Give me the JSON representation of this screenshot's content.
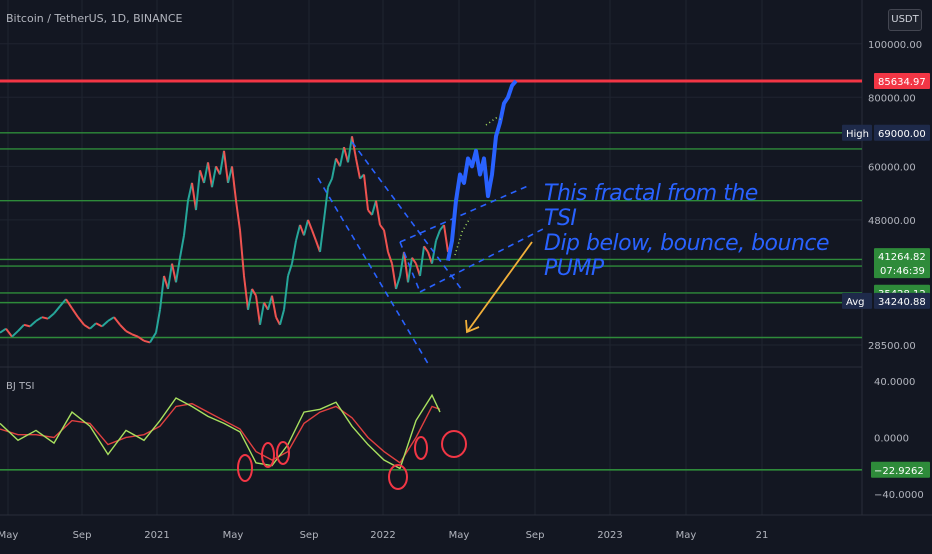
{
  "header": {
    "symbol_title": "Bitcoin / TetherUS, 1D, BINANCE",
    "unit_badge": "USDT"
  },
  "indicator": {
    "title": "BJ TSI"
  },
  "annotation": {
    "lines": [
      "This fractal from the",
      "TSI",
      "Dip below, bounce, bounce",
      "PUMP"
    ]
  },
  "colors": {
    "background": "#131722",
    "grid": "#1f2430",
    "horizontal_level": "#2e8b3a",
    "resistance": "#f23645",
    "projection": "#2962ff",
    "arrow": "#f2b03a",
    "circle": "#f23645",
    "tsi_green": "#a8e05f",
    "tsi_red": "#e04040"
  },
  "chart_data": [
    {
      "type": "line",
      "title": "Bitcoin / TetherUS, 1D, BINANCE",
      "y_scale": "log",
      "ylim": [
        26000,
        120000
      ],
      "x_ticks": [
        "May",
        "Sep",
        "2021",
        "May",
        "Sep",
        "2022",
        "May",
        "Sep",
        "2023",
        "May",
        "21"
      ],
      "y_ticks": [
        "100000.00",
        "80000.00",
        "60000.00",
        "48000.00",
        "28500.00"
      ],
      "y_tick_values": [
        100000,
        80000,
        60000,
        48000,
        28500
      ],
      "price_labels": [
        {
          "text": "85634.97",
          "value": 85634.97,
          "color": "#f23645",
          "tag": ""
        },
        {
          "text": "69000.00",
          "value": 69000,
          "color": "#1e2a4a",
          "tag": "High"
        },
        {
          "text": "41264.82",
          "value": 41264.82,
          "color": "#2e8b3a",
          "tag": "",
          "countdown": "07:46:39"
        },
        {
          "text": "35428.12",
          "value": 35428.12,
          "color": "#2e8b3a",
          "tag": ""
        },
        {
          "text": "34240.88",
          "value": 34240.88,
          "color": "#1e2a4a",
          "tag": "Avg"
        }
      ],
      "horizontal_levels": [
        69000,
        64500,
        52000,
        40700,
        39600,
        35400,
        34000,
        29400
      ],
      "resistance_level": 85634.97,
      "series": [
        {
          "values": [
            [
              0,
              30000
            ],
            [
              6,
              30500
            ],
            [
              12,
              29500
            ],
            [
              18,
              30200
            ],
            [
              24,
              31000
            ],
            [
              30,
              30800
            ],
            [
              36,
              31500
            ],
            [
              42,
              32000
            ],
            [
              48,
              31800
            ],
            [
              54,
              32500
            ],
            [
              60,
              33500
            ],
            [
              66,
              34500
            ],
            [
              72,
              33200
            ],
            [
              78,
              32000
            ],
            [
              84,
              31000
            ],
            [
              90,
              30500
            ],
            [
              96,
              31200
            ],
            [
              102,
              30800
            ],
            [
              108,
              31500
            ],
            [
              114,
              32000
            ],
            [
              120,
              31000
            ],
            [
              126,
              30200
            ],
            [
              132,
              29800
            ],
            [
              138,
              29500
            ],
            [
              144,
              29000
            ],
            [
              150,
              28800
            ],
            [
              156,
              30000
            ],
            [
              160,
              33000
            ],
            [
              164,
              38000
            ],
            [
              168,
              36000
            ],
            [
              172,
              40000
            ],
            [
              176,
              37000
            ],
            [
              180,
              41000
            ],
            [
              184,
              45000
            ],
            [
              188,
              52000
            ],
            [
              192,
              56000
            ],
            [
              196,
              50000
            ],
            [
              200,
              59000
            ],
            [
              204,
              56000
            ],
            [
              208,
              61000
            ],
            [
              212,
              55000
            ],
            [
              216,
              60000
            ],
            [
              220,
              58000
            ],
            [
              224,
              64000
            ],
            [
              228,
              56000
            ],
            [
              232,
              60000
            ],
            [
              236,
              52000
            ],
            [
              240,
              46000
            ],
            [
              244,
              38000
            ],
            [
              248,
              33000
            ],
            [
              252,
              36000
            ],
            [
              256,
              35000
            ],
            [
              260,
              31000
            ],
            [
              264,
              34000
            ],
            [
              268,
              33000
            ],
            [
              272,
              35000
            ],
            [
              276,
              32000
            ],
            [
              280,
              31000
            ],
            [
              284,
              33000
            ],
            [
              288,
              38000
            ],
            [
              292,
              40000
            ],
            [
              296,
              44000
            ],
            [
              300,
              47000
            ],
            [
              304,
              45000
            ],
            [
              308,
              48000
            ],
            [
              312,
              46000
            ],
            [
              316,
              44000
            ],
            [
              320,
              42000
            ],
            [
              324,
              48000
            ],
            [
              328,
              55000
            ],
            [
              332,
              57000
            ],
            [
              336,
              62000
            ],
            [
              340,
              60000
            ],
            [
              344,
              65000
            ],
            [
              348,
              61000
            ],
            [
              352,
              68000
            ],
            [
              356,
              62000
            ],
            [
              360,
              57000
            ],
            [
              364,
              58000
            ],
            [
              368,
              50000
            ],
            [
              372,
              49000
            ],
            [
              376,
              52000
            ],
            [
              380,
              47000
            ],
            [
              384,
              46000
            ],
            [
              388,
              42000
            ],
            [
              392,
              40000
            ],
            [
              396,
              36000
            ],
            [
              400,
              38000
            ],
            [
              404,
              42000
            ],
            [
              408,
              37000
            ],
            [
              412,
              41000
            ],
            [
              416,
              40000
            ],
            [
              420,
              38000
            ],
            [
              424,
              43000
            ],
            [
              428,
              42000
            ],
            [
              432,
              40000
            ],
            [
              436,
              44000
            ],
            [
              440,
              46000
            ],
            [
              444,
              47000
            ],
            [
              448,
              42000
            ]
          ]
        },
        {
          "name": "projection",
          "values": [
            [
              448,
              40500
            ],
            [
              452,
              44000
            ],
            [
              456,
              52000
            ],
            [
              460,
              58000
            ],
            [
              464,
              56000
            ],
            [
              468,
              62000
            ],
            [
              472,
              60000
            ],
            [
              476,
              64000
            ],
            [
              480,
              58000
            ],
            [
              484,
              62000
            ],
            [
              488,
              53000
            ],
            [
              492,
              58000
            ],
            [
              496,
              68000
            ],
            [
              500,
              72000
            ],
            [
              504,
              78000
            ],
            [
              508,
              80000
            ],
            [
              512,
              84000
            ],
            [
              516,
              85634
            ]
          ]
        }
      ]
    },
    {
      "type": "line",
      "title": "BJ TSI",
      "ylim": [
        -55,
        50
      ],
      "y_ticks": [
        "40.0000",
        "0.0000",
        "−40.0000"
      ],
      "y_tick_values": [
        40,
        0,
        -40
      ],
      "level_label": {
        "text": "−22.9262",
        "value": -22.9262
      },
      "x": [
        0,
        18,
        36,
        54,
        72,
        90,
        108,
        126,
        144,
        160,
        176,
        192,
        208,
        224,
        240,
        256,
        272,
        288,
        304,
        320,
        336,
        352,
        368,
        384,
        400,
        416,
        432,
        440
      ],
      "series": [
        {
          "values": [
            10,
            -2,
            5,
            -4,
            18,
            8,
            -12,
            5,
            -2,
            12,
            28,
            22,
            15,
            10,
            4,
            -18,
            -20,
            -5,
            18,
            20,
            25,
            8,
            -5,
            -16,
            -22,
            12,
            30,
            18
          ]
        },
        {
          "values": [
            6,
            2,
            2,
            0,
            12,
            10,
            -5,
            0,
            2,
            8,
            22,
            24,
            18,
            12,
            6,
            -10,
            -16,
            -10,
            10,
            18,
            22,
            14,
            0,
            -10,
            -18,
            0,
            22,
            20
          ]
        }
      ]
    }
  ]
}
